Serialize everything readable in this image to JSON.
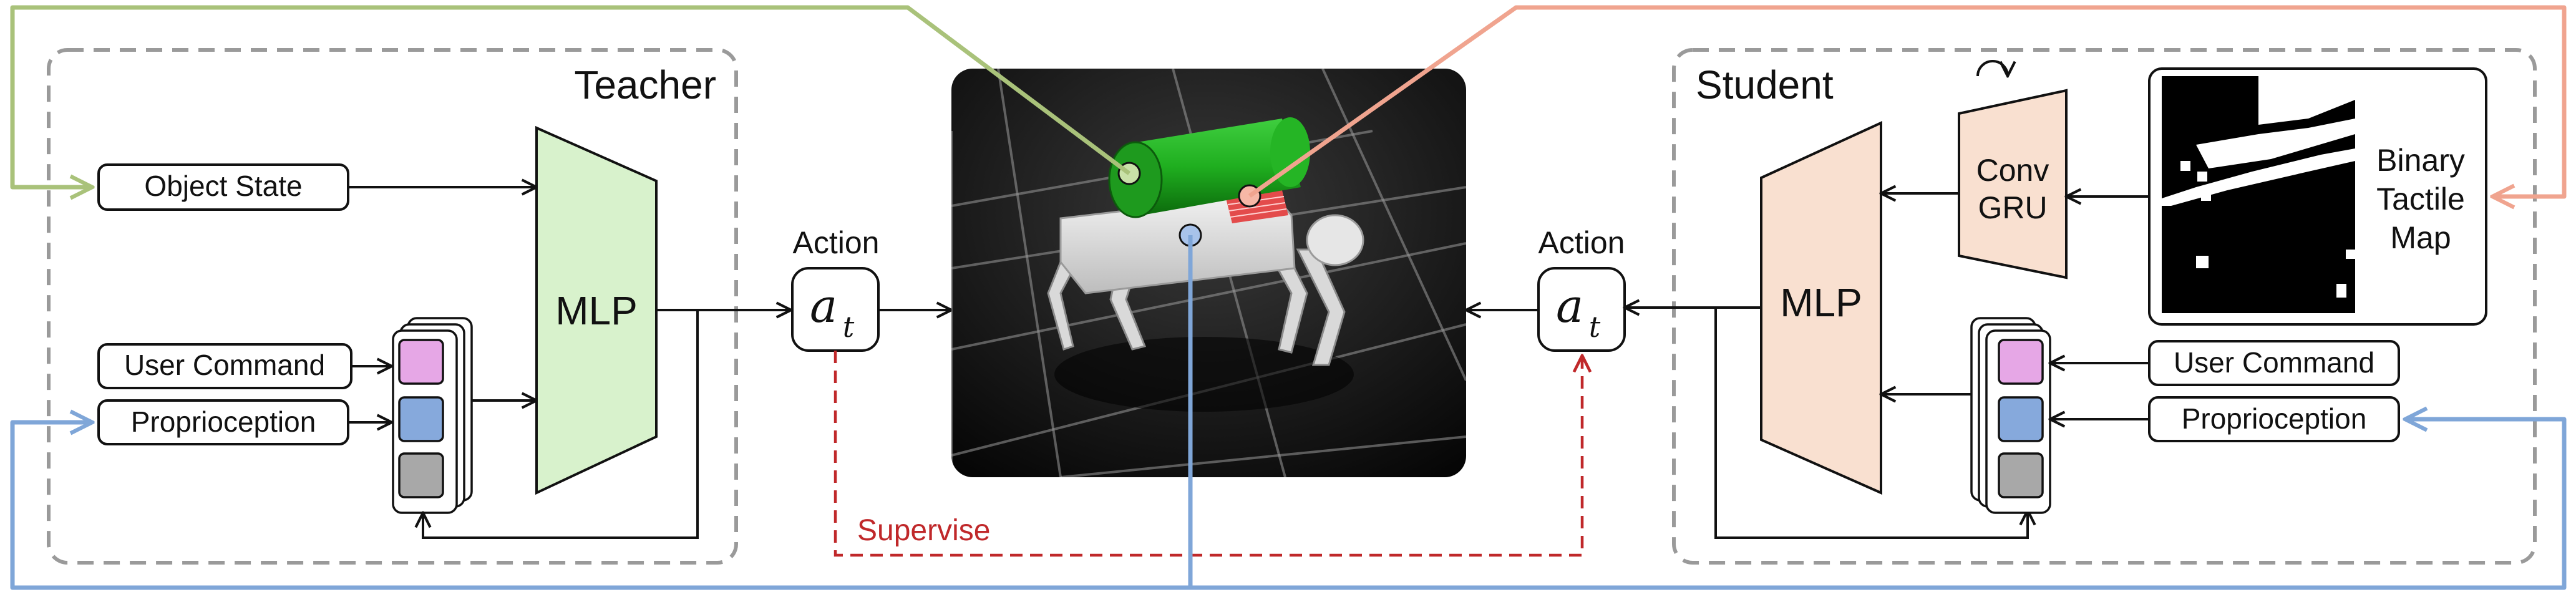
{
  "teacher": {
    "title": "Teacher",
    "object_state": "Object State",
    "user_command": "User Command",
    "proprioception": "Proprioception",
    "mlp": "MLP"
  },
  "student": {
    "title": "Student",
    "user_command": "User Command",
    "proprioception": "Proprioception",
    "mlp": "MLP",
    "conv_line1": "Conv",
    "conv_line2": "GRU",
    "tactile_line1": "Binary",
    "tactile_line2": "Tactile",
    "tactile_line3": "Map"
  },
  "action": {
    "label_left": "Action",
    "label_right": "Action",
    "symbol": "a",
    "subscript": "t"
  },
  "supervise_label": "Supervise",
  "colors": {
    "teacher_mlp": "#d8f2cc",
    "student_mlp": "#f9e0d0",
    "green_link": "#a9c27a",
    "salmon_link": "#f0a48f",
    "blue_link": "#7fa6d8",
    "supervise": "#c0282a",
    "box_gray": "#9a9a9a",
    "stack_pink": "#e6a7e6",
    "stack_blue": "#86a9dc",
    "stack_gray": "#a8a8a8"
  }
}
